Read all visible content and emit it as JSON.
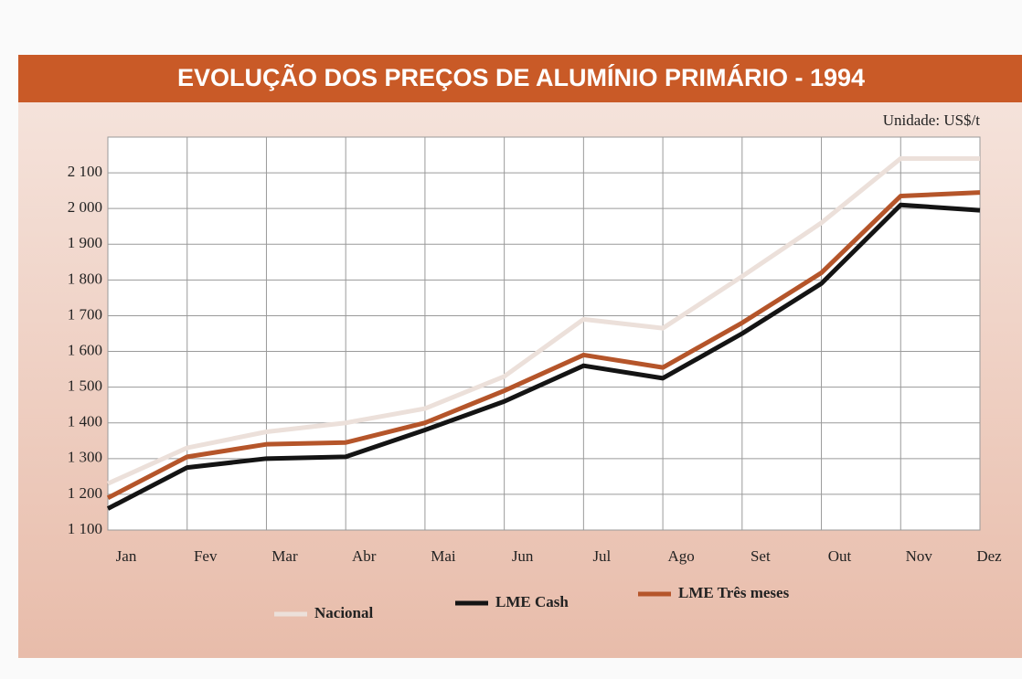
{
  "chart_data": {
    "type": "line",
    "title": "EVOLUÇÃO DOS PREÇOS DE ALUMÍNIO PRIMÁRIO - 1994",
    "annotation": "Unidade: US$/t",
    "categories": [
      "Jan",
      "Fev",
      "Mar",
      "Abr",
      "Mai",
      "Jun",
      "Jul",
      "Ago",
      "Set",
      "Out",
      "Nov",
      "Dez"
    ],
    "series": [
      {
        "name": "Nacional",
        "color": "#ece0da",
        "values": [
          1230,
          1330,
          1375,
          1400,
          1440,
          1530,
          1690,
          1665,
          1810,
          1960,
          2140,
          2140
        ]
      },
      {
        "name": "LME Cash",
        "color": "#141414",
        "values": [
          1160,
          1275,
          1300,
          1305,
          1380,
          1460,
          1560,
          1525,
          1650,
          1790,
          2010,
          1995
        ]
      },
      {
        "name": "LME Três meses",
        "color": "#b5552a",
        "values": [
          1190,
          1305,
          1340,
          1345,
          1400,
          1490,
          1590,
          1555,
          1680,
          1820,
          2035,
          2045
        ]
      }
    ],
    "ylim": [
      1100,
      2200
    ],
    "yticks": [
      {
        "value": 1100,
        "label": "1 100"
      },
      {
        "value": 1200,
        "label": "1 200"
      },
      {
        "value": 1300,
        "label": "1 300"
      },
      {
        "value": 1400,
        "label": "1 400"
      },
      {
        "value": 1500,
        "label": "1 500"
      },
      {
        "value": 1600,
        "label": "1 600"
      },
      {
        "value": 1700,
        "label": "1 700"
      },
      {
        "value": 1800,
        "label": "1 800"
      },
      {
        "value": 1900,
        "label": "1 900"
      },
      {
        "value": 2000,
        "label": "2 000"
      },
      {
        "value": 2100,
        "label": "2 100"
      }
    ],
    "grid": true,
    "legend": "bottom"
  }
}
